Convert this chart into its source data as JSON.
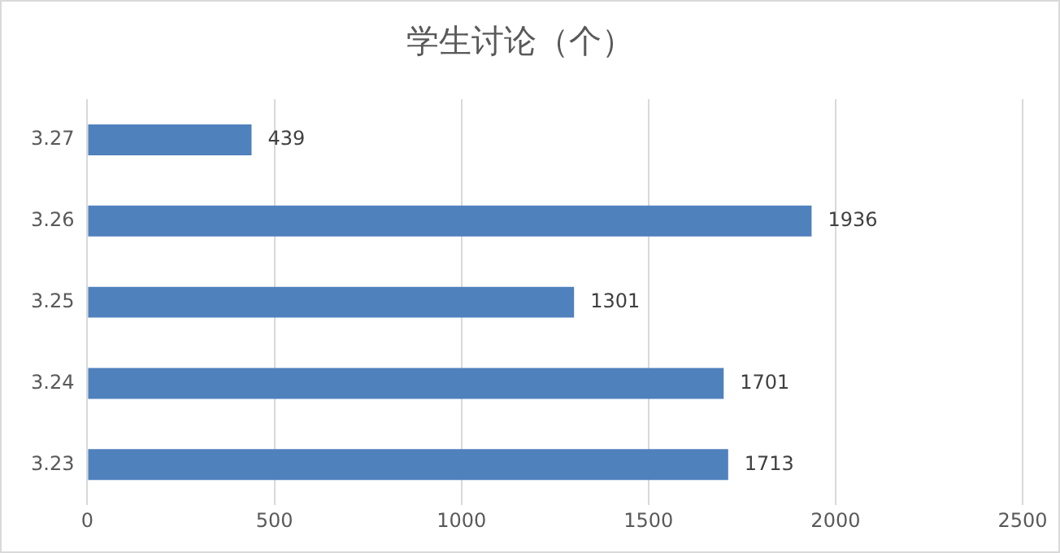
{
  "chart_data": {
    "type": "bar",
    "orientation": "horizontal",
    "title": "学生讨论（个）",
    "categories": [
      "3.27",
      "3.26",
      "3.25",
      "3.24",
      "3.23"
    ],
    "values": [
      439,
      1936,
      1301,
      1701,
      1713
    ],
    "color": "#4f81bd",
    "xlim": [
      0,
      2500
    ],
    "xticks": [
      0,
      500,
      1000,
      1500,
      2000,
      2500
    ],
    "grid": "x",
    "data_labels": true,
    "legend": false
  }
}
